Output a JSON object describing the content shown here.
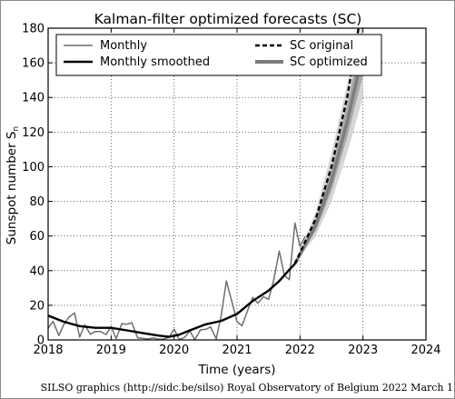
{
  "chart_data": {
    "type": "line",
    "title": "Kalman-filter optimized forecasts (SC)",
    "xlabel": "Time (years)",
    "ylabel": "Sunspot number S",
    "ylabel_subscript": "n",
    "xlim": [
      2018,
      2024
    ],
    "ylim": [
      0,
      180
    ],
    "xticks": [
      2018,
      2019,
      2020,
      2021,
      2022,
      2023,
      2024
    ],
    "yticks": [
      0,
      20,
      40,
      60,
      80,
      100,
      120,
      140,
      160,
      180
    ],
    "grid": true,
    "legend_position": "top",
    "series": [
      {
        "name": "Monthly",
        "style": "thin gray line",
        "color": "#6e6e6e",
        "x": [
          2018.0,
          2018.08,
          2018.17,
          2018.25,
          2018.33,
          2018.42,
          2018.5,
          2018.58,
          2018.67,
          2018.75,
          2018.83,
          2018.92,
          2019.0,
          2019.08,
          2019.17,
          2019.25,
          2019.33,
          2019.42,
          2019.5,
          2019.58,
          2019.67,
          2019.75,
          2019.83,
          2019.92,
          2020.0,
          2020.08,
          2020.17,
          2020.25,
          2020.33,
          2020.42,
          2020.5,
          2020.58,
          2020.67,
          2020.75,
          2020.83,
          2020.92,
          2021.0,
          2021.08,
          2021.17,
          2021.25,
          2021.33,
          2021.42,
          2021.5,
          2021.58,
          2021.67,
          2021.75,
          2021.83,
          2021.92,
          2022.0,
          2022.08
        ],
        "values": [
          6.8,
          10.7,
          2.5,
          8.9,
          13.1,
          15.6,
          1.6,
          8.7,
          3.3,
          4.9,
          4.9,
          3.1,
          7.7,
          0.8,
          9.4,
          9.1,
          9.9,
          1.2,
          0.9,
          0.5,
          1.1,
          0.4,
          0.5,
          1.5,
          6.2,
          0.2,
          1.5,
          5.2,
          0.2,
          5.8,
          6.1,
          7.5,
          0.6,
          14.4,
          34.0,
          21.8,
          10.4,
          8.2,
          17.2,
          24.5,
          21.2,
          25.0,
          23.4,
          34.0,
          51.3,
          37.4,
          34.8,
          67.5,
          54.0,
          59.7
        ]
      },
      {
        "name": "Monthly smoothed",
        "style": "thick black line",
        "color": "#000000",
        "x": [
          2018.0,
          2018.25,
          2018.5,
          2018.75,
          2019.0,
          2019.25,
          2019.5,
          2019.75,
          2019.92,
          2020.08,
          2020.25,
          2020.5,
          2020.75,
          2021.0,
          2021.25,
          2021.5,
          2021.67,
          2021.83,
          2021.92
        ],
        "values": [
          14.0,
          10.5,
          8.0,
          7.0,
          7.0,
          5.5,
          4.0,
          2.5,
          1.8,
          3.0,
          5.5,
          9.0,
          11.0,
          15.0,
          22.5,
          28.5,
          34.0,
          40.5,
          44.0
        ]
      },
      {
        "name": "SC original",
        "style": "black dashed line",
        "color": "#000000",
        "x": [
          2021.92,
          2022.25,
          2022.5,
          2022.75,
          2022.93
        ],
        "values": [
          44.0,
          70.0,
          100.0,
          140.0,
          180.0
        ]
      },
      {
        "name": "SC optimized",
        "style": "thick gray line with uncertainty bands",
        "color": "#7d7d7d",
        "x": [
          2021.92,
          2022.25,
          2022.5,
          2022.75,
          2023.0
        ],
        "values": [
          44.0,
          66.0,
          92.0,
          126.0,
          166.0
        ],
        "band_outer_low": [
          44.0,
          60.0,
          80.0,
          108.0,
          140.0
        ],
        "band_outer_high": [
          44.0,
          74.0,
          108.0,
          148.0,
          185.0
        ],
        "band_inner_low": [
          44.0,
          63.0,
          86.0,
          117.0,
          153.0
        ],
        "band_inner_high": [
          44.0,
          70.0,
          99.0,
          136.0,
          178.0
        ]
      }
    ]
  },
  "credit": "SILSO graphics (http://sidc.be/silso)  Royal Observatory of Belgium  2022 March 1"
}
